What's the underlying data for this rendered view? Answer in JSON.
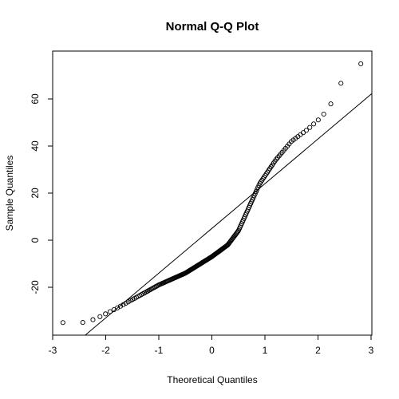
{
  "chart_data": {
    "type": "scatter",
    "title": "Normal Q-Q Plot",
    "xlabel": "Theoretical Quantiles",
    "ylabel": "Sample Quantiles",
    "xlim": [
      -3,
      3
    ],
    "ylim": [
      -40,
      80
    ],
    "x_ticks": [
      -3,
      -2,
      -1,
      0,
      1,
      2,
      3
    ],
    "y_ticks": [
      -20,
      0,
      20,
      40,
      60
    ],
    "grid": false,
    "legend": "none",
    "reference_line": {
      "intercept": 5,
      "slope": 19
    },
    "n_points": 200,
    "series": [
      {
        "quantile_knots": {
          "x": [
            -2.81,
            -2.44,
            -2.2,
            -1.8,
            -1.4,
            -1.0,
            -0.5,
            0.0,
            0.3,
            0.5,
            0.7,
            0.9,
            1.2,
            1.5,
            1.8,
            2.05,
            2.2,
            2.44,
            2.81
          ],
          "y": [
            -35,
            -35,
            -33.5,
            -29,
            -24,
            -19,
            -14,
            -7,
            -2,
            4,
            14,
            24,
            34,
            42,
            47,
            52,
            56,
            67,
            75
          ]
        }
      }
    ]
  }
}
